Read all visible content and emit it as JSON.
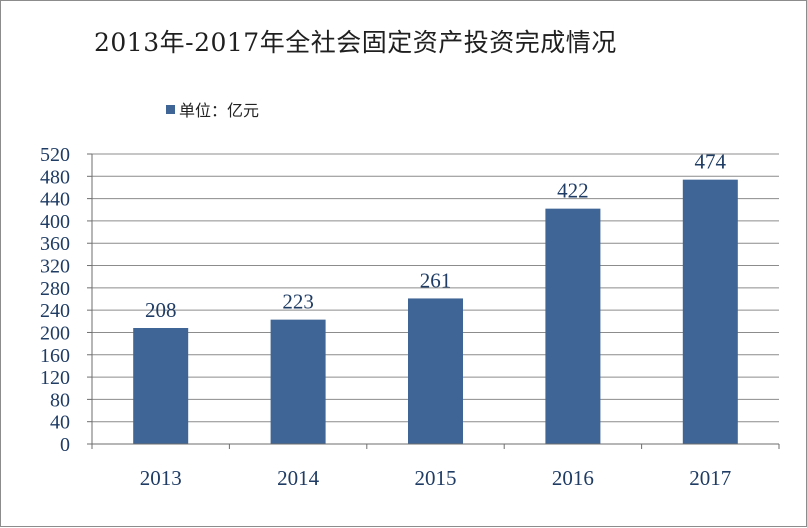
{
  "colors": {
    "bar": "#3f6496",
    "text": "#1f3c64",
    "grid": "#8c8c8c",
    "axis": "#6e6e6e"
  },
  "legend": {
    "label": "单位：亿元",
    "swatch_color": "#3f6496"
  },
  "chart_data": {
    "type": "bar",
    "title": "2013年-2017年全社会固定资产投资完成情况",
    "categories": [
      "2013",
      "2014",
      "2015",
      "2016",
      "2017"
    ],
    "series": [
      {
        "name": "单位：亿元",
        "values": [
          208,
          223,
          261,
          422,
          474
        ]
      }
    ],
    "data_labels": [
      "208",
      "223",
      "261",
      "422",
      "474"
    ],
    "ylim": [
      0,
      520
    ],
    "ytick_step": 40,
    "yticks": [
      "0",
      "40",
      "80",
      "120",
      "160",
      "200",
      "240",
      "280",
      "320",
      "360",
      "400",
      "440",
      "480",
      "520"
    ],
    "xlabel": "",
    "ylabel": "",
    "grid": true,
    "legend_position": "top-left"
  }
}
